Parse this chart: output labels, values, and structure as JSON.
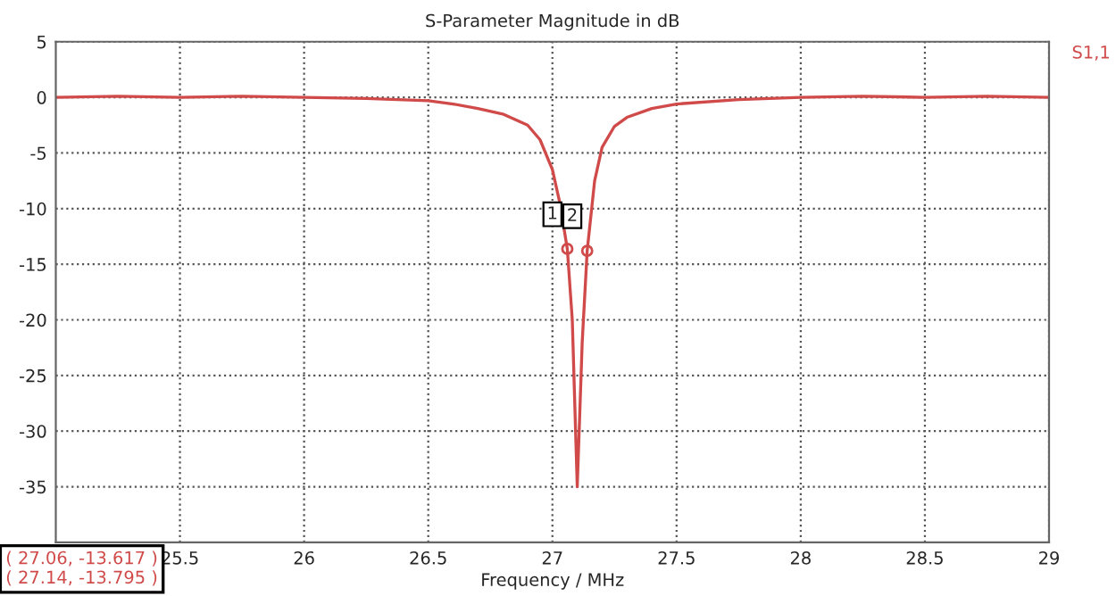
{
  "chart_data": {
    "type": "line",
    "title": "S-Parameter Magnitude in dB",
    "xlabel": "Frequency / MHz",
    "xlim": [
      25,
      29
    ],
    "xticks": [
      25.5,
      26,
      26.5,
      27,
      27.5,
      28,
      28.5,
      29
    ],
    "ylim": [
      -40,
      5
    ],
    "yticks": [
      5,
      0,
      -5,
      -10,
      -15,
      -20,
      -25,
      -30,
      -35
    ],
    "grid": true,
    "legend": "top right",
    "line_style": "solid",
    "marker": "none",
    "series": [
      {
        "name": "S1,1",
        "color": "#d04a4a",
        "x": [
          25,
          25.25,
          25.5,
          25.75,
          26,
          26.25,
          26.5,
          26.6,
          26.7,
          26.8,
          26.9,
          26.95,
          27.0,
          27.03,
          27.06,
          27.08,
          27.1,
          27.12,
          27.14,
          27.17,
          27.2,
          27.25,
          27.3,
          27.4,
          27.5,
          27.75,
          28,
          28.25,
          28.5,
          28.75,
          29
        ],
        "values": [
          0,
          0.1,
          0,
          0.1,
          0,
          -0.1,
          -0.3,
          -0.6,
          -1.0,
          -1.5,
          -2.5,
          -3.8,
          -6.5,
          -9.5,
          -13.617,
          -20,
          -35,
          -22,
          -13.795,
          -7.5,
          -4.5,
          -2.6,
          -1.8,
          -1.0,
          -0.6,
          -0.2,
          0,
          0.1,
          0,
          0.1,
          0
        ]
      }
    ],
    "annotations": [
      {
        "text": "1",
        "x": 27.06,
        "y": -13.617
      },
      {
        "text": "2",
        "x": 27.14,
        "y": -13.795
      },
      "( 27.06, -13.617 )",
      "( 27.14, -13.795 )"
    ]
  }
}
